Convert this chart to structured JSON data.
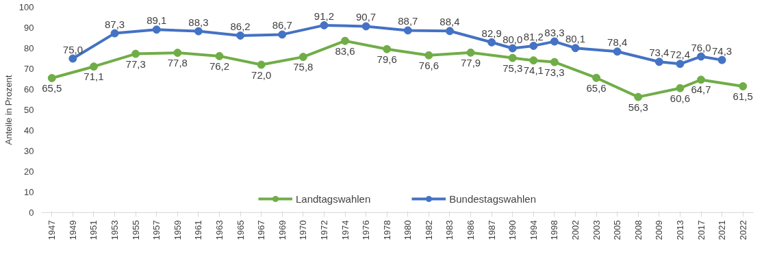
{
  "chart_data": {
    "type": "line",
    "ylabel": "Anteile in Prozent",
    "categories": [
      "1947",
      "1949",
      "1951",
      "1953",
      "1955",
      "1957",
      "1959",
      "1961",
      "1963",
      "1965",
      "1967",
      "1969",
      "1970",
      "1972",
      "1974",
      "1976",
      "1978",
      "1980",
      "1982",
      "1983",
      "1986",
      "1987",
      "1990",
      "1994",
      "1998",
      "2002",
      "2003",
      "2005",
      "2008",
      "2009",
      "2013",
      "2017",
      "2021",
      "2022"
    ],
    "series": [
      {
        "name": "Landtagswahlen",
        "color": "#70ad47",
        "values": [
          65.5,
          null,
          71.1,
          null,
          77.3,
          null,
          77.8,
          null,
          76.2,
          null,
          72.0,
          null,
          75.8,
          null,
          83.6,
          null,
          79.6,
          null,
          76.6,
          null,
          77.9,
          null,
          75.3,
          74.1,
          73.3,
          null,
          65.6,
          null,
          56.3,
          null,
          60.6,
          64.7,
          null,
          61.5
        ],
        "value_labels": [
          "65,5",
          null,
          "71,1",
          null,
          "77,3",
          null,
          "77,8",
          null,
          "76,2",
          null,
          "72,0",
          null,
          "75,8",
          null,
          "83,6",
          null,
          "79,6",
          null,
          "76,6",
          null,
          "77,9",
          null,
          "75,3",
          "74,1",
          "73,3",
          null,
          "65,6",
          null,
          "56,3",
          null,
          "60,6",
          "64,7",
          null,
          "61,5"
        ]
      },
      {
        "name": "Bundestagswahlen",
        "color": "#4472c4",
        "values": [
          null,
          75.0,
          null,
          87.3,
          null,
          89.1,
          null,
          88.3,
          null,
          86.2,
          null,
          86.7,
          null,
          91.2,
          null,
          90.7,
          null,
          88.7,
          null,
          88.4,
          null,
          82.9,
          80.0,
          81.2,
          83.3,
          80.1,
          null,
          78.4,
          null,
          73.4,
          72.4,
          76.0,
          74.3,
          null
        ],
        "value_labels": [
          null,
          "75,0",
          null,
          "87,3",
          null,
          "89,1",
          null,
          "88,3",
          null,
          "86,2",
          null,
          "86,7",
          null,
          "91,2",
          null,
          "90,7",
          null,
          "88,7",
          null,
          "88,4",
          null,
          "82,9",
          "80,0",
          "81,2",
          "83,3",
          "80,1",
          null,
          "78,4",
          null,
          "73,4",
          "72,4",
          "76,0",
          "74,3",
          null
        ]
      }
    ],
    "ylim": [
      0,
      100
    ],
    "yticks": [
      0,
      10,
      20,
      30,
      40,
      50,
      60,
      70,
      80,
      90,
      100
    ],
    "marker": "circle",
    "line_style": "solid",
    "legend": "bottom"
  }
}
